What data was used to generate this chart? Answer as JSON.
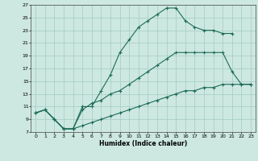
{
  "xlabel": "Humidex (Indice chaleur)",
  "background_color": "#cde8e0",
  "grid_color": "#a8cfc7",
  "line_color": "#1c6b58",
  "xlim": [
    -0.5,
    23.5
  ],
  "ylim": [
    7,
    27
  ],
  "xticks": [
    0,
    1,
    2,
    3,
    4,
    5,
    6,
    7,
    8,
    9,
    10,
    11,
    12,
    13,
    14,
    15,
    16,
    17,
    18,
    19,
    20,
    21,
    22,
    23
  ],
  "yticks": [
    7,
    9,
    11,
    13,
    15,
    17,
    19,
    21,
    23,
    25,
    27
  ],
  "curve1_x": [
    0,
    1,
    2,
    3,
    4,
    5,
    6,
    7,
    8,
    9,
    10,
    11,
    12,
    13,
    14,
    15,
    16,
    17,
    18,
    19,
    20,
    21
  ],
  "curve1_y": [
    10,
    10.5,
    9,
    7.5,
    7.5,
    11,
    11,
    13.5,
    16,
    19.5,
    21.5,
    23.5,
    24.5,
    25.5,
    26.5,
    26.5,
    24.5,
    23.5,
    23,
    23,
    22.5,
    22.5
  ],
  "curve2_x": [
    0,
    1,
    2,
    3,
    4,
    5,
    6,
    7,
    8,
    9,
    10,
    11,
    12,
    13,
    14,
    15,
    16,
    17,
    18,
    19,
    20,
    21,
    22,
    23
  ],
  "curve2_y": [
    10,
    10.5,
    9,
    7.5,
    7.5,
    10.5,
    11.5,
    12,
    13,
    13.5,
    14.5,
    15.5,
    16.5,
    17.5,
    18.5,
    19.5,
    19.5,
    19.5,
    19.5,
    19.5,
    19.5,
    16.5,
    14.5,
    14.5
  ],
  "curve3_x": [
    0,
    1,
    2,
    3,
    4,
    5,
    6,
    7,
    8,
    9,
    10,
    11,
    12,
    13,
    14,
    15,
    16,
    17,
    18,
    19,
    20,
    21,
    22,
    23
  ],
  "curve3_y": [
    10,
    10.5,
    9,
    7.5,
    7.5,
    8.0,
    8.5,
    9.0,
    9.5,
    10.0,
    10.5,
    11.0,
    11.5,
    12.0,
    12.5,
    13.0,
    13.5,
    13.5,
    14.0,
    14.0,
    14.5,
    14.5,
    14.5,
    14.5
  ]
}
